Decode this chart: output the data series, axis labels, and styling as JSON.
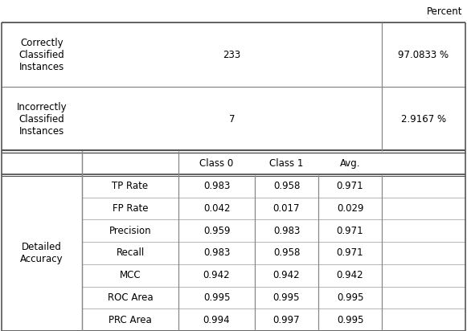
{
  "correctly_classified": "233",
  "correctly_pct": "97.0833 %",
  "incorrectly_classified": "7",
  "incorrectly_pct": "2.9167 %",
  "detail_label": "Detailed\nAccuracy",
  "percent_label": "Percent",
  "class_headers": [
    "Class 0",
    "Class 1",
    "Avg."
  ],
  "metrics": [
    {
      "name": "TP Rate",
      "class0": "0.983",
      "class1": "0.958",
      "avg": "0.971"
    },
    {
      "name": "FP Rate",
      "class0": "0.042",
      "class1": "0.017",
      "avg": "0.029"
    },
    {
      "name": "Precision",
      "class0": "0.959",
      "class1": "0.983",
      "avg": "0.971"
    },
    {
      "name": "Recall",
      "class0": "0.983",
      "class1": "0.958",
      "avg": "0.971"
    },
    {
      "name": "MCC",
      "class0": "0.942",
      "class1": "0.942",
      "avg": "0.942"
    },
    {
      "name": "ROC Area",
      "class0": "0.995",
      "class1": "0.995",
      "avg": "0.995"
    },
    {
      "name": "PRC Area",
      "class0": "0.994",
      "class1": "0.997",
      "avg": "0.995"
    }
  ],
  "font_size": 8.5,
  "line_color": "#888888",
  "thick_line_color": "#555555",
  "bg_color": "#ffffff"
}
